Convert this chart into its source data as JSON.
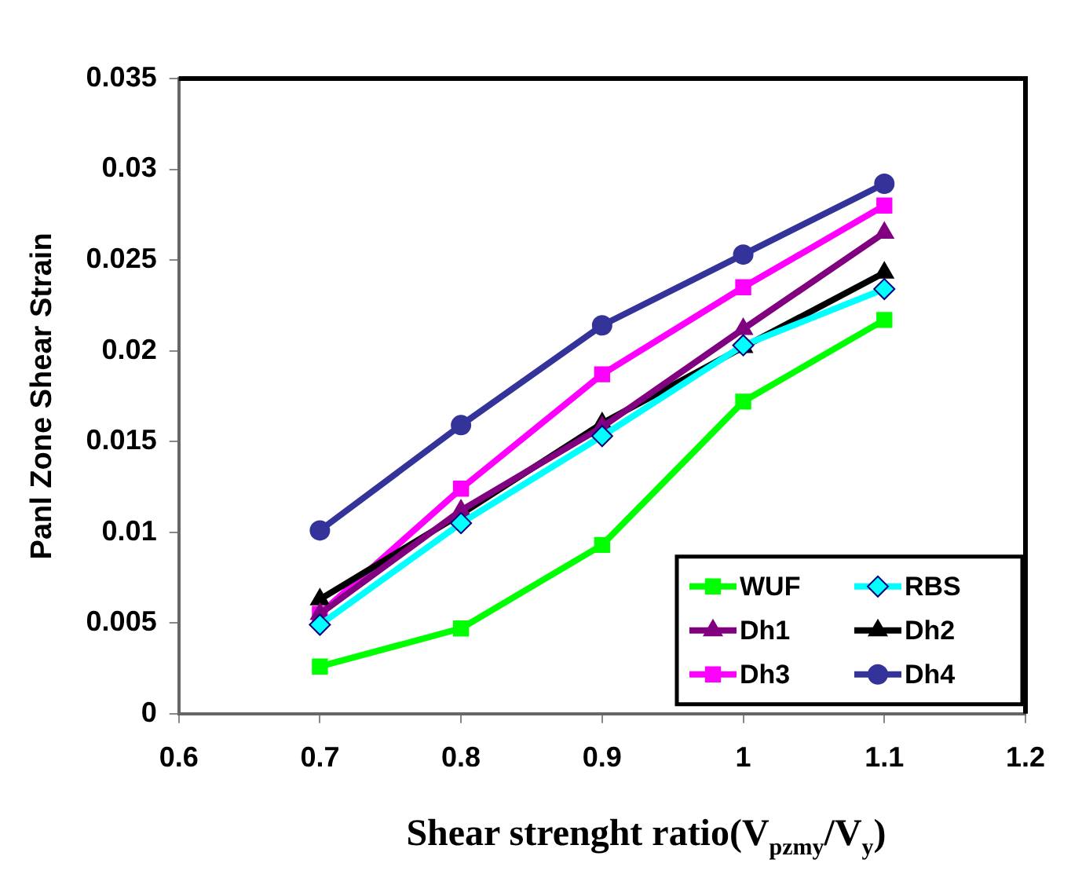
{
  "chart_data": {
    "type": "line",
    "xlabel": "Shear strenght ratio(V$_{pzmy}$/V$_{y}$)",
    "ylabel": "Panl Zone Shear Strain",
    "x": [
      0.7,
      0.8,
      0.9,
      1,
      1.1
    ],
    "xlim": [
      0.6,
      1.2
    ],
    "xticks": [
      0.6,
      0.7,
      0.8,
      0.9,
      1,
      1.1,
      1.2
    ],
    "ylim": [
      0,
      0.035
    ],
    "yticks": [
      0,
      0.005,
      0.01,
      0.015,
      0.02,
      0.025,
      0.03,
      0.035
    ],
    "grid": false,
    "legend": "bottom right",
    "series": [
      {
        "name": "WUF",
        "color": "#00ff00",
        "marker": "square",
        "values": [
          0.0026,
          0.0047,
          0.0093,
          0.0172,
          0.0217
        ]
      },
      {
        "name": "RBS",
        "color": "#00ffff",
        "marker": "diamond",
        "values": [
          0.0049,
          0.0105,
          0.0153,
          0.0203,
          0.0234
        ]
      },
      {
        "name": "Dh1",
        "color": "#800080",
        "marker": "triangle",
        "values": [
          0.0055,
          0.0112,
          0.0158,
          0.0212,
          0.0265
        ]
      },
      {
        "name": "Dh2",
        "color": "#000000",
        "marker": "triangle",
        "values": [
          0.0063,
          0.011,
          0.016,
          0.0202,
          0.0243
        ]
      },
      {
        "name": "Dh3",
        "color": "#ff00ff",
        "marker": "square",
        "values": [
          0.0055,
          0.0124,
          0.0187,
          0.0235,
          0.028
        ]
      },
      {
        "name": "Dh4",
        "color": "#333399",
        "marker": "circle",
        "values": [
          0.0101,
          0.0159,
          0.0214,
          0.0253,
          0.0292
        ]
      }
    ]
  }
}
